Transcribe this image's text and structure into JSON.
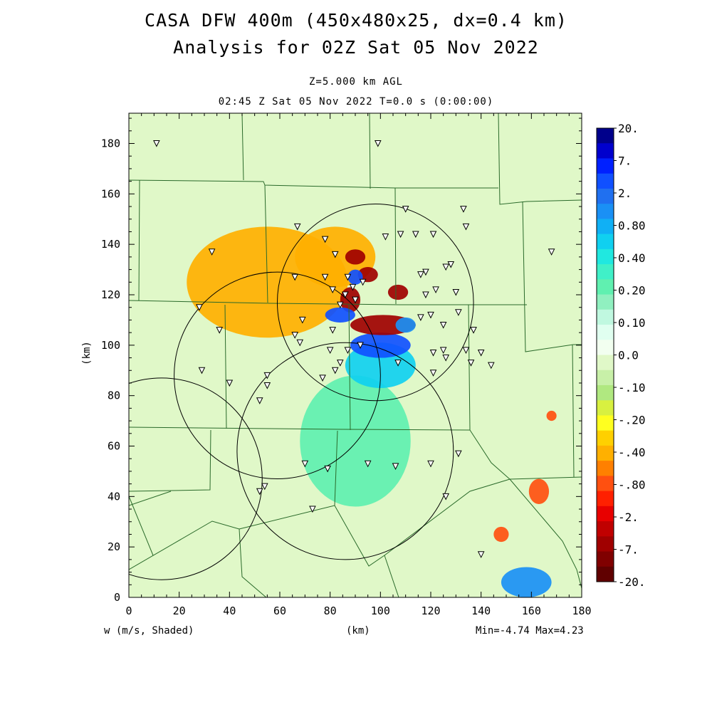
{
  "header": {
    "title_line1": "CASA DFW 400m (450x480x25, dx=0.4 km)",
    "title_line2": "Analysis for 02Z Sat 05 Nov 2022",
    "level": "Z=5.000 km AGL",
    "time": "02:45 Z Sat 05 Nov 2022    T=0.0 s (0:00:00)"
  },
  "footer": {
    "field_label": "w (m/s, Shaded)",
    "x_unit": "(km)",
    "minmax": "Min=-4.74 Max=4.23"
  },
  "colorbar": {
    "labels": [
      "20.",
      "7.",
      "2.",
      "0.80",
      "0.40",
      "0.20",
      "0.10",
      "0.0",
      "-.10",
      "-.20",
      "-.40",
      "-.80",
      "-2.",
      "-7.",
      "-20."
    ],
    "colors": [
      "#00008b",
      "#0000cd",
      "#0020ff",
      "#1050ff",
      "#2070f0",
      "#1a90f5",
      "#10b0f5",
      "#10d0f0",
      "#20e8e0",
      "#40f0c8",
      "#60f0b0",
      "#90f0c0",
      "#c0f8e0",
      "#e0fff0",
      "#f2fff0",
      "#e0f8c8",
      "#c8f0a8",
      "#b0e880",
      "#d8f040",
      "#ffff20",
      "#ffd000",
      "#ffb000",
      "#ff8000",
      "#ff5010",
      "#ff2000",
      "#e80000",
      "#c00000",
      "#a00000",
      "#800000",
      "#600000"
    ]
  },
  "chart_data": {
    "type": "heatmap",
    "field": "w (m/s, Shaded)",
    "xlabel": "(km)",
    "ylabel": "(km)",
    "xlim": [
      0,
      180
    ],
    "ylim": [
      0,
      192
    ],
    "xticks": [
      0,
      20,
      40,
      60,
      80,
      100,
      120,
      140,
      160,
      180
    ],
    "yticks": [
      0,
      20,
      40,
      60,
      80,
      100,
      120,
      140,
      160,
      180
    ],
    "min": -4.74,
    "max": 4.23,
    "radar_rings": [
      {
        "cx": 13,
        "cy": 47,
        "r": 40
      },
      {
        "cx": 59,
        "cy": 88,
        "r": 41
      },
      {
        "cx": 98,
        "cy": 117,
        "r": 39
      },
      {
        "cx": 86,
        "cy": 58,
        "r": 43
      }
    ],
    "features": [
      {
        "cx": 90,
        "cy": 127,
        "rx": 3,
        "ry": 3,
        "v": 3.0
      },
      {
        "cx": 84,
        "cy": 112,
        "rx": 6,
        "ry": 3,
        "v": 2.5
      },
      {
        "cx": 100,
        "cy": 100,
        "rx": 12,
        "ry": 5,
        "v": 2.2
      },
      {
        "cx": 110,
        "cy": 108,
        "rx": 4,
        "ry": 3,
        "v": 1.8
      },
      {
        "cx": 100,
        "cy": 92,
        "rx": 14,
        "ry": 9,
        "v": 0.6
      },
      {
        "cx": 90,
        "cy": 62,
        "rx": 22,
        "ry": 26,
        "v": 0.25
      },
      {
        "cx": 158,
        "cy": 6,
        "rx": 10,
        "ry": 6,
        "v": 0.9
      },
      {
        "cx": 90,
        "cy": 135,
        "rx": 4,
        "ry": 3,
        "v": -3.0
      },
      {
        "cx": 95,
        "cy": 128,
        "rx": 4,
        "ry": 3,
        "v": -2.5
      },
      {
        "cx": 88,
        "cy": 118,
        "rx": 4,
        "ry": 5,
        "v": -3.2
      },
      {
        "cx": 101,
        "cy": 108,
        "rx": 13,
        "ry": 4,
        "v": -3.5
      },
      {
        "cx": 107,
        "cy": 121,
        "rx": 4,
        "ry": 3,
        "v": -2.2
      },
      {
        "cx": 82,
        "cy": 135,
        "rx": 16,
        "ry": 12,
        "v": -0.4
      },
      {
        "cx": 55,
        "cy": 125,
        "rx": 32,
        "ry": 22,
        "v": -0.22
      },
      {
        "cx": 163,
        "cy": 42,
        "rx": 4,
        "ry": 5,
        "v": -0.8
      },
      {
        "cx": 148,
        "cy": 25,
        "rx": 3,
        "ry": 3,
        "v": -0.6
      },
      {
        "cx": 168,
        "cy": 72,
        "rx": 2,
        "ry": 2,
        "v": -0.5
      }
    ],
    "stations": [
      [
        11,
        180
      ],
      [
        99,
        180
      ],
      [
        33,
        137
      ],
      [
        28,
        115
      ],
      [
        36,
        106
      ],
      [
        29,
        90
      ],
      [
        40,
        85
      ],
      [
        78,
        142
      ],
      [
        67,
        147
      ],
      [
        82,
        136
      ],
      [
        78,
        127
      ],
      [
        87,
        127
      ],
      [
        93,
        125
      ],
      [
        66,
        127
      ],
      [
        81,
        122
      ],
      [
        86,
        120
      ],
      [
        89,
        123
      ],
      [
        84,
        116
      ],
      [
        90,
        118
      ],
      [
        69,
        110
      ],
      [
        66,
        104
      ],
      [
        68,
        101
      ],
      [
        81,
        106
      ],
      [
        80,
        98
      ],
      [
        87,
        98
      ],
      [
        92,
        100
      ],
      [
        84,
        93
      ],
      [
        82,
        90
      ],
      [
        77,
        87
      ],
      [
        55,
        88
      ],
      [
        55,
        84
      ],
      [
        52,
        78
      ],
      [
        107,
        93
      ],
      [
        110,
        154
      ],
      [
        108,
        144
      ],
      [
        102,
        143
      ],
      [
        114,
        144
      ],
      [
        121,
        144
      ],
      [
        128,
        132
      ],
      [
        133,
        154
      ],
      [
        134,
        147
      ],
      [
        118,
        129
      ],
      [
        126,
        131
      ],
      [
        116,
        128
      ],
      [
        130,
        121
      ],
      [
        122,
        122
      ],
      [
        118,
        120
      ],
      [
        131,
        113
      ],
      [
        120,
        112
      ],
      [
        116,
        111
      ],
      [
        125,
        108
      ],
      [
        134,
        98
      ],
      [
        140,
        97
      ],
      [
        137,
        106
      ],
      [
        136,
        93
      ],
      [
        125,
        98
      ],
      [
        121,
        97
      ],
      [
        121,
        89
      ],
      [
        126,
        95
      ],
      [
        144,
        92
      ],
      [
        168,
        137
      ],
      [
        70,
        53
      ],
      [
        79,
        51
      ],
      [
        95,
        53
      ],
      [
        106,
        52
      ],
      [
        120,
        53
      ],
      [
        131,
        57
      ],
      [
        54,
        44
      ],
      [
        52,
        42
      ],
      [
        73,
        35
      ],
      [
        126,
        40
      ],
      [
        140,
        17
      ]
    ]
  }
}
